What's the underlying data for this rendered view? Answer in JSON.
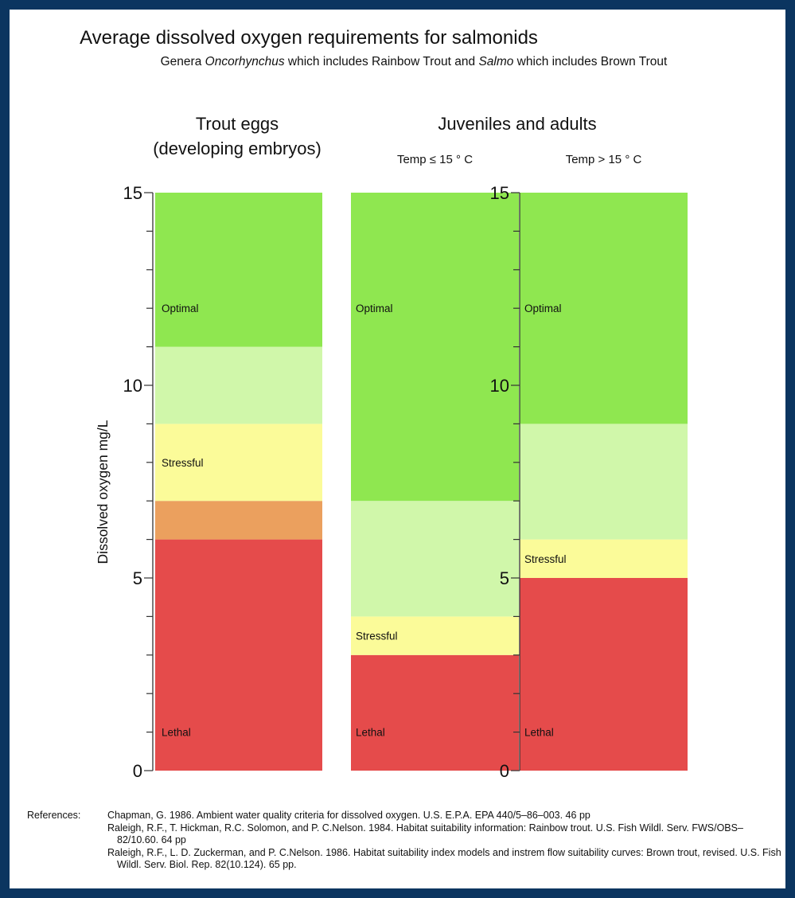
{
  "chart_data": {
    "type": "bar",
    "title": "Average dissolved oxygen requirements for salmonids",
    "subtitle": {
      "parts": [
        {
          "text": "Genera ",
          "italic": false
        },
        {
          "text": "Oncorhynchus",
          "italic": true
        },
        {
          "text": " which includes Rainbow Trout and ",
          "italic": false
        },
        {
          "text": "Salmo",
          "italic": true
        },
        {
          "text": " which includes Brown Trout",
          "italic": false
        }
      ]
    },
    "ylabel": "Dissolved oxygen  mg/L",
    "ylim": [
      0,
      15
    ],
    "y_ticks": [
      0,
      5,
      10,
      15
    ],
    "group_headings": {
      "eggs_line1": "Trout eggs",
      "eggs_line2": "(developing embryos)",
      "juveniles": "Juveniles and adults"
    },
    "columns": [
      {
        "label_line1": "",
        "label_line2": "",
        "segments": [
          {
            "from": 0,
            "to": 6,
            "color": "#e54b4b",
            "label": "Lethal",
            "label_at": 1
          },
          {
            "from": 6,
            "to": 7,
            "color": "#eba05e",
            "label": "",
            "label_at": 0
          },
          {
            "from": 7,
            "to": 9,
            "color": "#fbfb99",
            "label": "Stressful",
            "label_at": 8
          },
          {
            "from": 9,
            "to": 11,
            "color": "#d0f7aa",
            "label": "",
            "label_at": 0
          },
          {
            "from": 11,
            "to": 15,
            "color": "#8fe750",
            "label": "Optimal",
            "label_at": 12
          }
        ]
      },
      {
        "label_line1": "Temp ≤ 15 ° C",
        "segments": [
          {
            "from": 0,
            "to": 3,
            "color": "#e54b4b",
            "label": "Lethal",
            "label_at": 1
          },
          {
            "from": 3,
            "to": 4,
            "color": "#fbfb99",
            "label": "Stressful",
            "label_at": 3.5
          },
          {
            "from": 4,
            "to": 7,
            "color": "#d0f7aa",
            "label": "",
            "label_at": 0
          },
          {
            "from": 7,
            "to": 15,
            "color": "#8fe750",
            "label": "Optimal",
            "label_at": 12
          }
        ]
      },
      {
        "label_line1": "Temp > 15 ° C",
        "segments": [
          {
            "from": 0,
            "to": 5,
            "color": "#e54b4b",
            "label": "Lethal",
            "label_at": 1
          },
          {
            "from": 5,
            "to": 6,
            "color": "#fbfb99",
            "label": "Stressful",
            "label_at": 5.5
          },
          {
            "from": 6,
            "to": 9,
            "color": "#d0f7aa",
            "label": "",
            "label_at": 0
          },
          {
            "from": 9,
            "to": 15,
            "color": "#8fe750",
            "label": "Optimal",
            "label_at": 12
          }
        ]
      }
    ]
  },
  "references": {
    "label": "References:",
    "items": [
      "Chapman, G. 1986. Ambient water quality criteria for dissolved oxygen. U.S. E.P.A. EPA 440/5–86–003. 46 pp",
      "Raleigh, R.F., T. Hickman, R.C. Solomon, and P. C.Nelson. 1984. Habitat suitability information: Rainbow trout. U.S. Fish Wildl. Serv. FWS/OBS–82/10.60. 64 pp",
      "Raleigh, R.F., L. D. Zuckerman, and P. C.Nelson. 1986. Habitat suitability index models and instrem flow suitability curves: Brown trout, revised. U.S. Fish Wildl. Serv. Biol. Rep. 82(10.124). 65 pp."
    ]
  }
}
